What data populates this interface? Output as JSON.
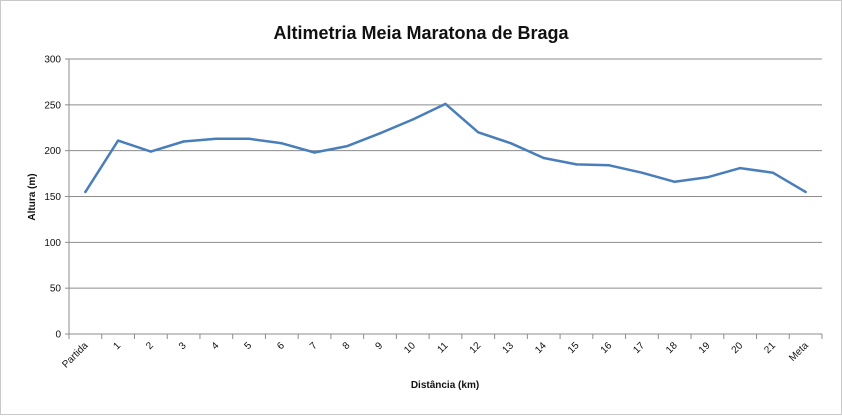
{
  "chart_data": {
    "type": "line",
    "title": "Altimetria Meia Maratona de Braga",
    "xlabel": "Distância  (km)",
    "ylabel": "Altura (m)",
    "ylim": [
      0,
      300
    ],
    "yticks": [
      0,
      50,
      100,
      150,
      200,
      250,
      300
    ],
    "grid": true,
    "legend": "none",
    "categories": [
      "Partida",
      "1",
      "2",
      "3",
      "4",
      "5",
      "6",
      "7",
      "8",
      "9",
      "10",
      "11",
      "12",
      "13",
      "14",
      "15",
      "16",
      "17",
      "18",
      "19",
      "20",
      "21",
      "Meta"
    ],
    "series": [
      {
        "color": "#4a7ebb",
        "values": [
          155,
          211,
          199,
          210,
          213,
          213,
          208,
          198,
          205,
          219,
          234,
          251,
          220,
          208,
          192,
          185,
          184,
          176,
          166,
          171,
          181,
          176,
          155
        ]
      }
    ]
  }
}
